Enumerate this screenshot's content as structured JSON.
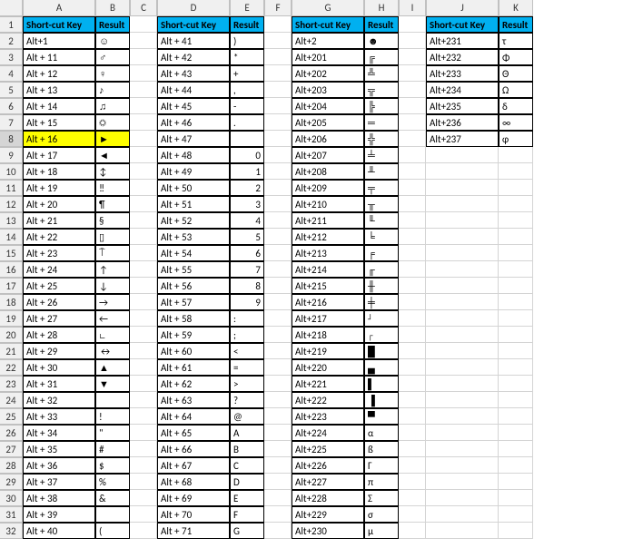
{
  "columns": [
    "A",
    "B",
    "C",
    "D",
    "E",
    "F",
    "G",
    "H",
    "I",
    "J",
    "K"
  ],
  "hdr": {
    "shortcut": "Short-cut Key",
    "result": "Result"
  },
  "hdrBg": "#00b0f0",
  "highlightBg": "#ffff00",
  "highlightRow": 8,
  "tables": [
    {
      "startCol": 1,
      "rows": [
        [
          "Alt+1",
          "☺"
        ],
        [
          "Alt + 11",
          "♂"
        ],
        [
          "Alt + 12",
          "♀"
        ],
        [
          "Alt + 13",
          "♪"
        ],
        [
          "Alt + 14",
          "♫"
        ],
        [
          "Alt + 15",
          "☼"
        ],
        [
          "Alt + 16",
          "►"
        ],
        [
          "Alt + 17",
          "◄"
        ],
        [
          "Alt + 18",
          "↕"
        ],
        [
          "Alt + 19",
          "‼"
        ],
        [
          "Alt + 20",
          "¶"
        ],
        [
          "Alt + 21",
          "§"
        ],
        [
          "Alt + 22",
          "▯"
        ],
        [
          "Alt + 23",
          "⍑"
        ],
        [
          "Alt + 24",
          "↑"
        ],
        [
          "Alt + 25",
          "↓"
        ],
        [
          "Alt + 26",
          "→"
        ],
        [
          "Alt + 27",
          "←"
        ],
        [
          "Alt + 28",
          "∟"
        ],
        [
          "Alt + 29",
          "↔"
        ],
        [
          "Alt + 30",
          "▲"
        ],
        [
          "Alt + 31",
          "▼"
        ],
        [
          "Alt + 32",
          ""
        ],
        [
          "Alt + 33",
          "!"
        ],
        [
          "Alt + 34",
          "\""
        ],
        [
          "Alt + 35",
          "#"
        ],
        [
          "Alt + 36",
          "$"
        ],
        [
          "Alt + 37",
          "%"
        ],
        [
          "Alt + 38",
          "&"
        ],
        [
          "Alt + 39",
          ""
        ],
        [
          "Alt + 40",
          "("
        ]
      ]
    },
    {
      "startCol": 4,
      "rows": [
        [
          "Alt + 41",
          ")"
        ],
        [
          "Alt + 42",
          "*"
        ],
        [
          "Alt + 43",
          "+"
        ],
        [
          "Alt + 44",
          ","
        ],
        [
          "Alt + 45",
          "-"
        ],
        [
          "Alt + 46",
          "."
        ],
        [
          "Alt + 47",
          ""
        ],
        [
          "Alt + 48",
          "0"
        ],
        [
          "Alt + 49",
          "1"
        ],
        [
          "Alt + 50",
          "2"
        ],
        [
          "Alt + 51",
          "3"
        ],
        [
          "Alt + 52",
          "4"
        ],
        [
          "Alt + 53",
          "5"
        ],
        [
          "Alt + 54",
          "6"
        ],
        [
          "Alt + 55",
          "7"
        ],
        [
          "Alt + 56",
          "8"
        ],
        [
          "Alt + 57",
          "9"
        ],
        [
          "Alt + 58",
          ":"
        ],
        [
          "Alt + 59",
          ";"
        ],
        [
          "Alt + 60",
          "<"
        ],
        [
          "Alt + 61",
          "="
        ],
        [
          "Alt + 62",
          ">"
        ],
        [
          "Alt + 63",
          "?"
        ],
        [
          "Alt + 64",
          "@"
        ],
        [
          "Alt + 65",
          "A"
        ],
        [
          "Alt + 66",
          "B"
        ],
        [
          "Alt + 67",
          "C"
        ],
        [
          "Alt + 68",
          "D"
        ],
        [
          "Alt + 69",
          "E"
        ],
        [
          "Alt + 70",
          "F"
        ],
        [
          "Alt + 71",
          "G"
        ]
      ]
    },
    {
      "startCol": 7,
      "rows": [
        [
          "Alt+2",
          "☻"
        ],
        [
          "Alt+201",
          "╔"
        ],
        [
          "Alt+202",
          "╩"
        ],
        [
          "Alt+203",
          "╦"
        ],
        [
          "Alt+204",
          "╠"
        ],
        [
          "Alt+205",
          "═"
        ],
        [
          "Alt+206",
          "╬"
        ],
        [
          "Alt+207",
          "╧"
        ],
        [
          "Alt+208",
          "╨"
        ],
        [
          "Alt+209",
          "╤"
        ],
        [
          "Alt+210",
          "╥"
        ],
        [
          "Alt+211",
          "╙"
        ],
        [
          "Alt+212",
          "╘"
        ],
        [
          "Alt+213",
          "╒"
        ],
        [
          "Alt+214",
          "╓"
        ],
        [
          "Alt+215",
          "╫"
        ],
        [
          "Alt+216",
          "╪"
        ],
        [
          "Alt+217",
          "┘"
        ],
        [
          "Alt+218",
          "┌"
        ],
        [
          "Alt+219",
          "█"
        ],
        [
          "Alt+220",
          "▄"
        ],
        [
          "Alt+221",
          "▌"
        ],
        [
          "Alt+222",
          "▐"
        ],
        [
          "Alt+223",
          "▀"
        ],
        [
          "Alt+224",
          "α"
        ],
        [
          "Alt+225",
          "ß"
        ],
        [
          "Alt+226",
          "Γ"
        ],
        [
          "Alt+227",
          "π"
        ],
        [
          "Alt+228",
          "Σ"
        ],
        [
          "Alt+229",
          "σ"
        ],
        [
          "Alt+230",
          "µ"
        ]
      ]
    },
    {
      "startCol": 10,
      "rows": [
        [
          "Alt+231",
          "τ"
        ],
        [
          "Alt+232",
          "Φ"
        ],
        [
          "Alt+233",
          "Θ"
        ],
        [
          "Alt+234",
          "Ω"
        ],
        [
          "Alt+235",
          "δ"
        ],
        [
          "Alt+236",
          "∞"
        ],
        [
          "Alt+237",
          "φ"
        ]
      ]
    }
  ],
  "numRows": 32
}
